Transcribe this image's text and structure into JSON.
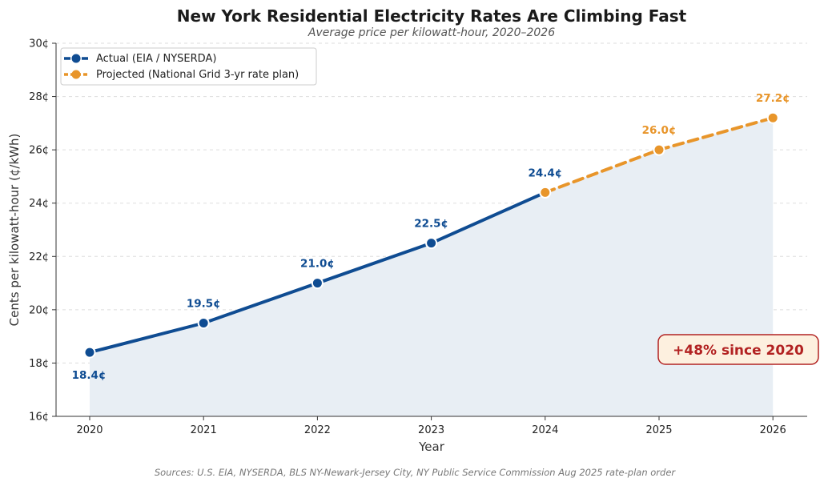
{
  "chart_data": {
    "type": "line",
    "title": "New York Residential Electricity Rates Are Climbing Fast",
    "subtitle": "Average price per kilowatt-hour, 2020–2026",
    "xlabel": "Year",
    "ylabel": "Cents per kilowatt-hour (¢/kWh)",
    "x": [
      2020,
      2021,
      2022,
      2023,
      2024,
      2025,
      2026
    ],
    "x_tick_labels": [
      "2020",
      "2021",
      "2022",
      "2023",
      "2024",
      "2025",
      "2026"
    ],
    "ylim": [
      16,
      30
    ],
    "y_ticks": [
      16,
      18,
      20,
      22,
      24,
      26,
      28,
      30
    ],
    "y_tick_labels": [
      "16¢",
      "18¢",
      "20¢",
      "22¢",
      "24¢",
      "26¢",
      "28¢",
      "30¢"
    ],
    "grid": "horizontal dashed",
    "legend_position": "top-left",
    "series": [
      {
        "name": "Actual (EIA / NYSERDA)",
        "style": "solid",
        "color": "#0f4c92",
        "x": [
          2020,
          2021,
          2022,
          2023,
          2024
        ],
        "values": [
          18.4,
          19.5,
          21.0,
          22.5,
          24.4
        ],
        "labels": [
          "18.4¢",
          "19.5¢",
          "21.0¢",
          "22.5¢",
          "24.4¢"
        ]
      },
      {
        "name": "Projected (National Grid 3-yr rate plan)",
        "style": "dashed",
        "color": "#e8952a",
        "x": [
          2024,
          2025,
          2026
        ],
        "values": [
          24.4,
          26.0,
          27.2
        ],
        "labels": [
          "",
          "26.0¢",
          "27.2¢"
        ]
      }
    ],
    "area_fill_color": "#e8eef4",
    "annotation": {
      "text": "+48% since 2020",
      "text_color": "#b22222",
      "background": "#fdf0df",
      "border": "#b22222"
    },
    "source": "Sources: U.S. EIA, NYSERDA, BLS NY-Newark-Jersey City, NY Public Service Commission Aug 2025 rate-plan order"
  }
}
